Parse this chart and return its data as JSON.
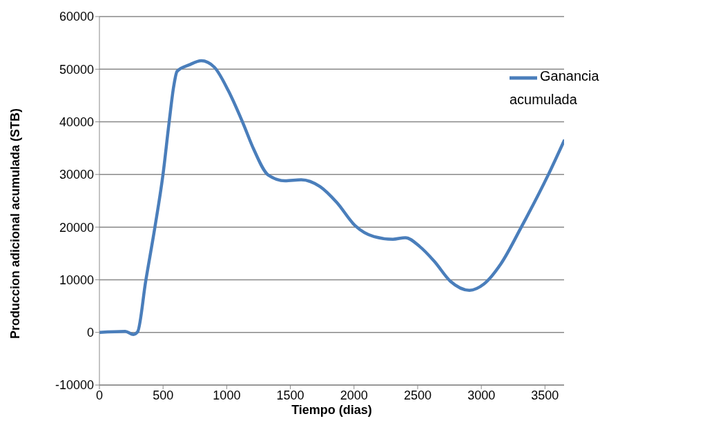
{
  "chart_data": {
    "type": "line",
    "xlabel": "Tiempo (dias)",
    "ylabel": "Produccion adicional acumulada (STB)",
    "xlim": [
      0,
      3650
    ],
    "xticks": [
      0,
      500,
      1000,
      1500,
      2000,
      2500,
      3000,
      3500
    ],
    "ylim": [
      -10000,
      60000
    ],
    "yticks": [
      -10000,
      0,
      10000,
      20000,
      30000,
      40000,
      50000,
      60000
    ],
    "grid": "y",
    "legend": "top right",
    "marker": "none",
    "line_style": "solid",
    "series": [
      {
        "name": "Ganancia acumulada",
        "color": "#4a7ebb",
        "x": [
          0,
          203,
          267,
          300,
          364,
          436,
          500,
          547,
          584,
          610,
          703,
          801,
          902,
          1013,
          1127,
          1212,
          1326,
          1458,
          1585,
          1733,
          1864,
          2008,
          2157,
          2305,
          2403,
          2517,
          2631,
          2758,
          2907,
          3021,
          3153,
          3314,
          3525,
          3650
        ],
        "values": [
          0,
          200,
          -400,
          100,
          9800,
          20000,
          30100,
          39800,
          46800,
          49600,
          50800,
          51600,
          50400,
          45900,
          39800,
          34800,
          29900,
          28800,
          29000,
          27700,
          24700,
          20300,
          18200,
          17700,
          18000,
          16300,
          13500,
          9700,
          8000,
          9200,
          13000,
          20000,
          29900,
          36400
        ]
      }
    ]
  }
}
